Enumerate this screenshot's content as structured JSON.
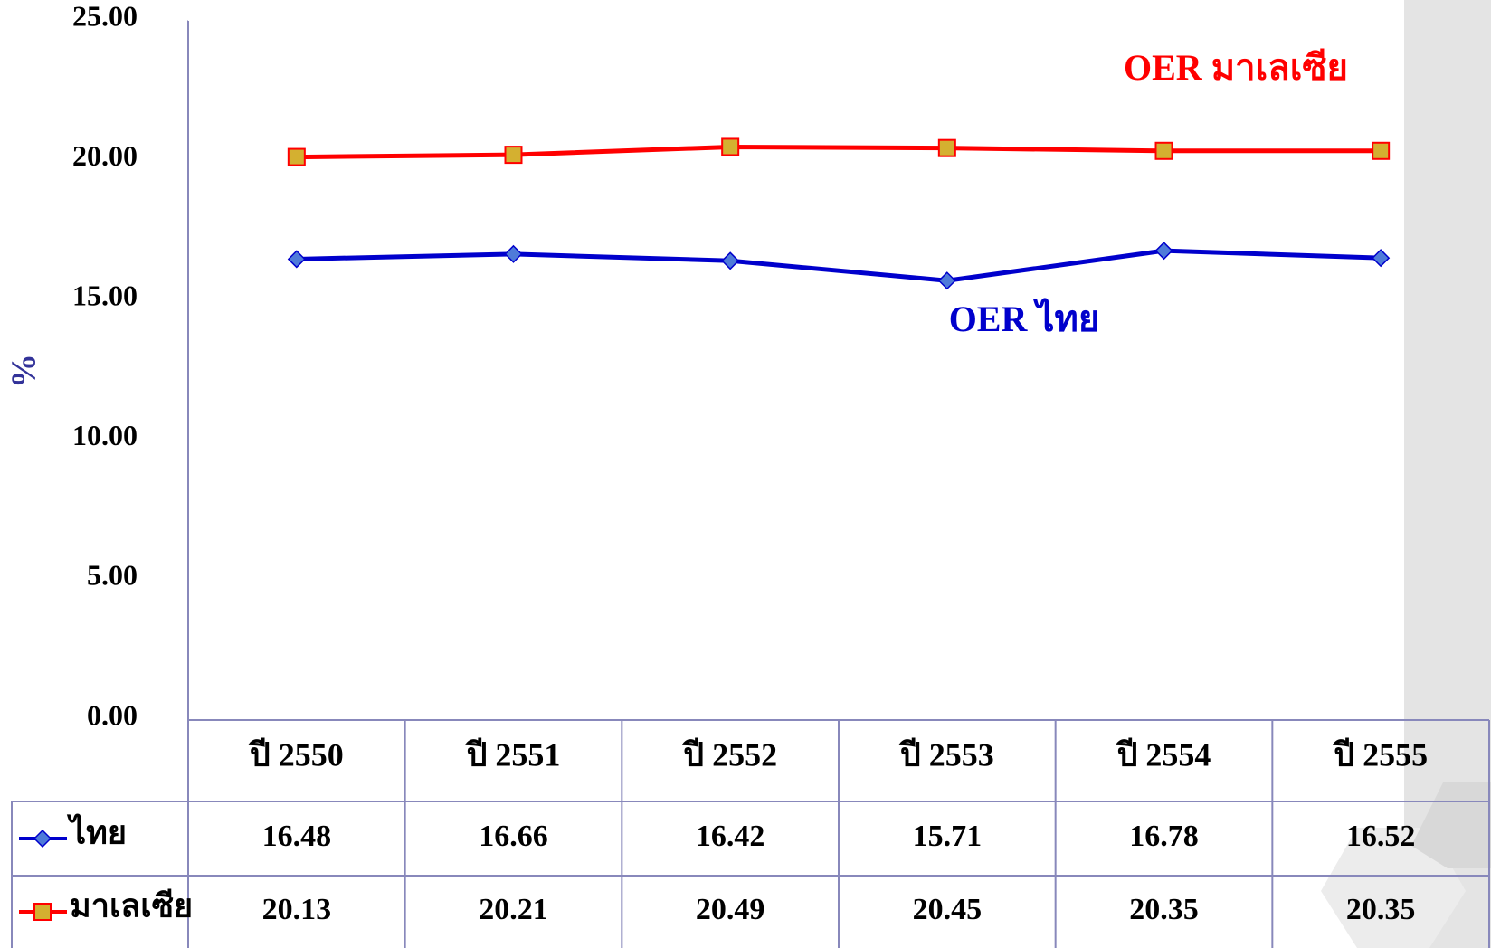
{
  "chart_data": {
    "type": "line",
    "y_label": "%",
    "categories": [
      "ปี 2550",
      "ปี 2551",
      "ปี 2552",
      "ปี 2553",
      "ปี 2554",
      "ปี 2555"
    ],
    "series": [
      {
        "name": "ไทย",
        "color": "#0000cc",
        "marker": "diamond",
        "marker_color": "#4f7bd9",
        "values": [
          16.48,
          16.66,
          16.42,
          15.71,
          16.78,
          16.52
        ]
      },
      {
        "name": "มาเลเซีย",
        "color": "#ff0000",
        "marker": "square",
        "marker_color": "#d4b030",
        "values": [
          20.13,
          20.21,
          20.49,
          20.45,
          20.35,
          20.35
        ]
      }
    ],
    "annotations": [
      {
        "text": "OER มาเลเซีย",
        "color": "#ff0000"
      },
      {
        "text": "OER ไทย",
        "color": "#0000cc"
      }
    ],
    "ylim": [
      0,
      25
    ],
    "yticks": [
      {
        "value": 0,
        "label": "0.00"
      },
      {
        "value": 5,
        "label": "5.00"
      },
      {
        "value": 10,
        "label": "10.00"
      },
      {
        "value": 15,
        "label": "15.00"
      },
      {
        "value": 20,
        "label": "20.00"
      },
      {
        "value": 25,
        "label": "25.00"
      }
    ],
    "grid": false
  }
}
